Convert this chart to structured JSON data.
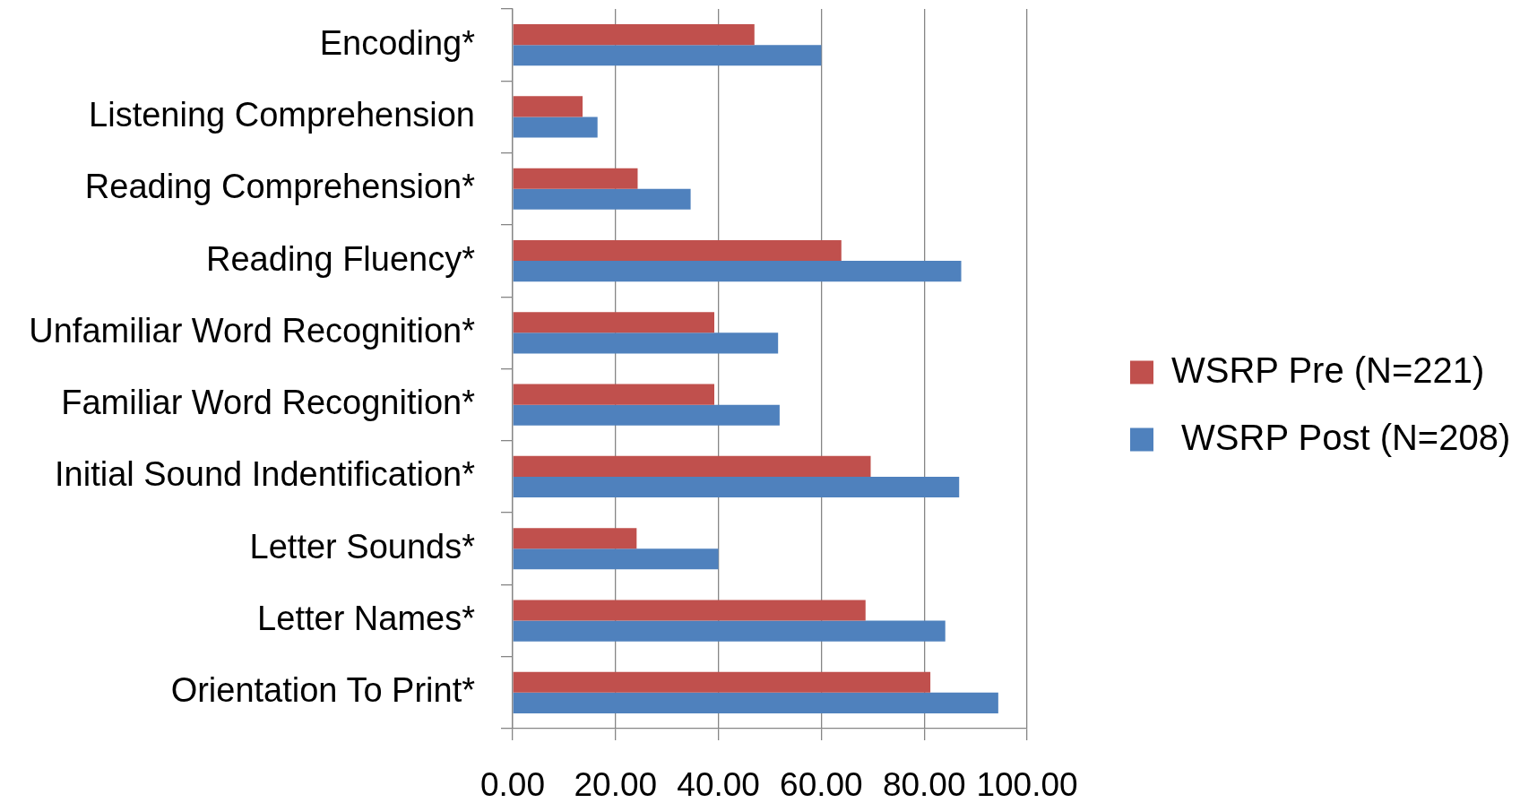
{
  "chart_data": {
    "type": "bar",
    "orientation": "horizontal",
    "categories": [
      "Encoding*",
      "Listening Comprehension",
      "Reading Comprehension*",
      "Reading Fluency*",
      "Unfamiliar Word Recognition*",
      "Familiar Word Recognition*",
      "Initial Sound Indentification*",
      "Letter Sounds*",
      "Letter Names*",
      "Orientation To Print*"
    ],
    "series": [
      {
        "name": "WSRP Pre (N=221)",
        "color": "#c0504d",
        "values": [
          47.0,
          13.6,
          24.3,
          63.9,
          39.2,
          39.2,
          69.6,
          24.1,
          68.6,
          81.2
        ]
      },
      {
        "name": " WSRP Post (N=208)",
        "color": "#4f81bd",
        "values": [
          60.0,
          16.5,
          34.6,
          87.2,
          51.6,
          51.9,
          86.8,
          40.0,
          84.1,
          94.4
        ]
      }
    ],
    "xlim": [
      0,
      100
    ],
    "xticks": [
      {
        "value": 0,
        "label": "0.00"
      },
      {
        "value": 20,
        "label": "20.00"
      },
      {
        "value": 40,
        "label": "40.00"
      },
      {
        "value": 60,
        "label": "60.00"
      },
      {
        "value": 80,
        "label": "80.00"
      },
      {
        "value": 100,
        "label": "100.00"
      }
    ],
    "grid": "x",
    "legend": "right"
  }
}
